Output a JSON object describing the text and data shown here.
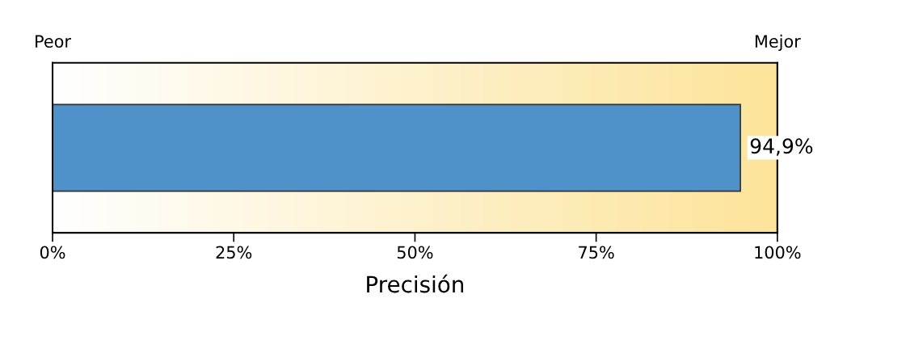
{
  "chart_data": {
    "type": "bar",
    "orientation": "horizontal",
    "categories": [
      null
    ],
    "values": [
      94.9
    ],
    "color": "#4f92c9",
    "value_labels": [
      "94,9%"
    ],
    "xlim": [
      0,
      100
    ],
    "xticks": [
      {
        "value": 0,
        "label": "0%"
      },
      {
        "value": 25,
        "label": "25%"
      },
      {
        "value": 50,
        "label": "50%"
      },
      {
        "value": 75,
        "label": "75%"
      },
      {
        "value": 100,
        "label": "100%"
      }
    ],
    "xlabel": "Precisión",
    "annotations": [
      "Peor",
      "Mejor"
    ],
    "tick_labels": "x",
    "grid": false,
    "legend": false
  }
}
